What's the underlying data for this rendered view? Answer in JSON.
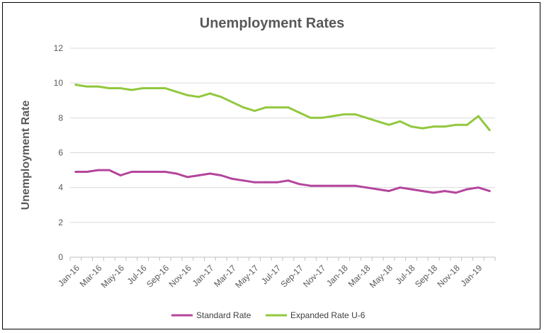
{
  "chart_data": {
    "type": "line",
    "title": "Unemployment Rates",
    "xlabel": "",
    "ylabel": "Unemployment Rate",
    "ylim": [
      0,
      12
    ],
    "yticks": [
      "0",
      "2",
      "4",
      "6",
      "8",
      "10",
      "12"
    ],
    "categories": [
      "Jan-16",
      "Feb-16",
      "Mar-16",
      "Apr-16",
      "May-16",
      "Jun-16",
      "Jul-16",
      "Aug-16",
      "Sep-16",
      "Oct-16",
      "Nov-16",
      "Dec-16",
      "Jan-17",
      "Feb-17",
      "Mar-17",
      "Apr-17",
      "May-17",
      "Jun-17",
      "Jul-17",
      "Aug-17",
      "Sep-17",
      "Oct-17",
      "Nov-17",
      "Dec-17",
      "Jan-18",
      "Feb-18",
      "Mar-18",
      "Apr-18",
      "May-18",
      "Jun-18",
      "Jul-18",
      "Aug-18",
      "Sep-18",
      "Oct-18",
      "Nov-18",
      "Dec-18",
      "Jan-19",
      "Feb-19"
    ],
    "tick_labels": [
      "Jan-16",
      "Mar-16",
      "May-16",
      "Jul-16",
      "Sep-16",
      "Nov-16",
      "Jan-17",
      "Mar-17",
      "May-17",
      "Jul-17",
      "Sep-17",
      "Nov-17",
      "Jan-18",
      "Mar-18",
      "May-18",
      "Jul-18",
      "Sep-18",
      "Nov-18",
      "Jan-19"
    ],
    "grid": true,
    "legend_position": "bottom",
    "series": [
      {
        "name": "Standard Rate",
        "color": "#b4459c",
        "values": [
          4.9,
          4.9,
          5.0,
          5.0,
          4.7,
          4.9,
          4.9,
          4.9,
          4.9,
          4.8,
          4.6,
          4.7,
          4.8,
          4.7,
          4.5,
          4.4,
          4.3,
          4.3,
          4.3,
          4.4,
          4.2,
          4.1,
          4.1,
          4.1,
          4.1,
          4.1,
          4.0,
          3.9,
          3.8,
          4.0,
          3.9,
          3.8,
          3.7,
          3.8,
          3.7,
          3.9,
          4.0,
          3.8
        ]
      },
      {
        "name": "Expanded Rate U-6",
        "color": "#92c83e",
        "values": [
          9.9,
          9.8,
          9.8,
          9.7,
          9.7,
          9.6,
          9.7,
          9.7,
          9.7,
          9.5,
          9.3,
          9.2,
          9.4,
          9.2,
          8.9,
          8.6,
          8.4,
          8.6,
          8.6,
          8.6,
          8.3,
          8.0,
          8.0,
          8.1,
          8.2,
          8.2,
          8.0,
          7.8,
          7.6,
          7.8,
          7.5,
          7.4,
          7.5,
          7.5,
          7.6,
          7.6,
          8.1,
          7.3
        ]
      }
    ]
  }
}
